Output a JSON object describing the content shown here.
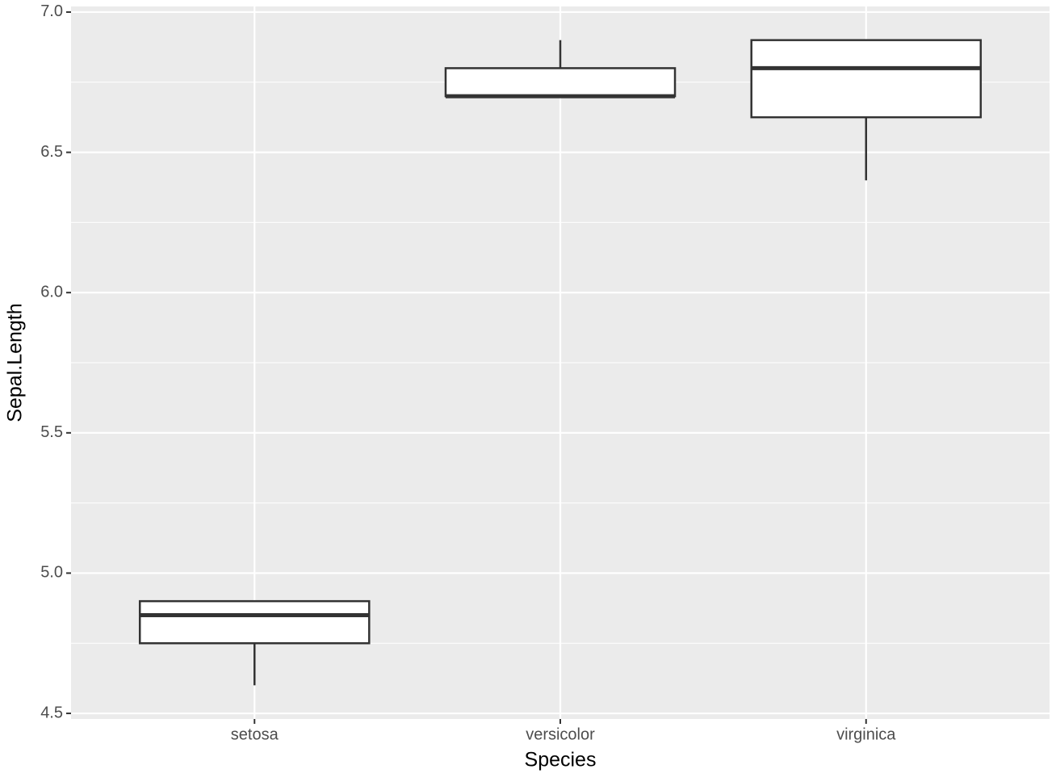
{
  "chart_data": {
    "type": "boxplot",
    "x_label": "Species",
    "y_label": "Sepal.Length",
    "categories": [
      "setosa",
      "versicolor",
      "virginica"
    ],
    "boxes": [
      {
        "min": 4.6,
        "q1": 4.75,
        "median": 4.85,
        "q3": 4.9,
        "max": 4.9
      },
      {
        "min": 6.7,
        "q1": 6.7,
        "median": 6.7,
        "q3": 6.8,
        "max": 6.9
      },
      {
        "min": 6.4,
        "q1": 6.625,
        "median": 6.8,
        "q3": 6.9,
        "max": 6.9
      }
    ],
    "ylim": [
      4.48,
      7.02
    ],
    "yticks": [
      {
        "value": 4.5,
        "label": "4.5"
      },
      {
        "value": 5,
        "label": "5.0"
      },
      {
        "value": 5.5,
        "label": "5.5"
      },
      {
        "value": 6,
        "label": "6.0"
      },
      {
        "value": 6.5,
        "label": "6.5"
      },
      {
        "value": 7,
        "label": "7.0"
      }
    ],
    "y_minor_ticks": [
      4.75,
      5.25,
      5.75,
      6.25,
      6.75
    ],
    "grid": true,
    "box_fill": "#ffffff",
    "box_stroke": "#333333",
    "panel_color": "#ebebeb"
  }
}
